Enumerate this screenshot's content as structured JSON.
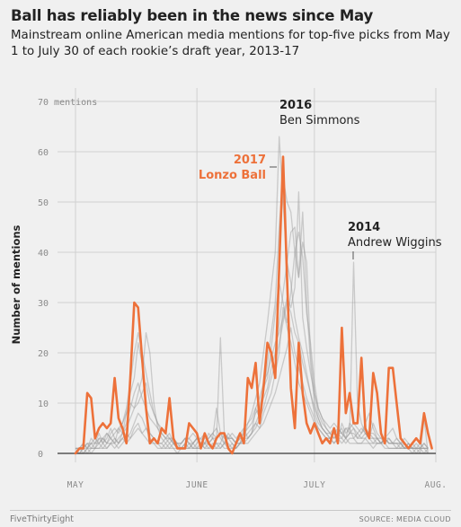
{
  "header": {
    "title": "Ball has reliably been in the news since May",
    "subtitle": "Mainstream online American media mentions for top-five picks from May 1 to July 30 of each rookie’s draft year, 2013-17"
  },
  "footer": {
    "brand": "FiveThirtyEight",
    "source": "SOURCE: MEDIA CLOUD"
  },
  "colors": {
    "highlight": "#ed713a",
    "background_series": "#9a9a9a",
    "grid": "#d0d0d0",
    "background": "#f0f0f0"
  },
  "chart_data": {
    "type": "line",
    "ylabel": "Number of mentions",
    "ylim": [
      0,
      70
    ],
    "xlim": [
      0,
      90
    ],
    "y_ticks": [
      {
        "value": 0,
        "label": "0"
      },
      {
        "value": 10,
        "label": "10"
      },
      {
        "value": 20,
        "label": "20"
      },
      {
        "value": 30,
        "label": "30"
      },
      {
        "value": 40,
        "label": "40"
      },
      {
        "value": 50,
        "label": "50"
      },
      {
        "value": 60,
        "label": "60"
      },
      {
        "value": 70,
        "label": "70 mentions"
      }
    ],
    "x_ticks": [
      {
        "value": 0,
        "label": "MAY"
      },
      {
        "value": 31,
        "label": "JUNE"
      },
      {
        "value": 61,
        "label": "JULY"
      },
      {
        "value": 92,
        "label": "AUG."
      }
    ],
    "annotations": [
      {
        "year": "2016",
        "name": "Ben Simmons",
        "x": 53,
        "y": 63
      },
      {
        "year": "2017",
        "name": "Lonzo Ball",
        "x": 53,
        "y": 59
      },
      {
        "year": "2014",
        "name": "Andrew Wiggins",
        "x": 71,
        "y": 39
      }
    ],
    "highlight_series": {
      "name": "Lonzo Ball",
      "values": [
        0,
        1,
        1,
        12,
        11,
        3,
        5,
        6,
        5,
        6,
        15,
        7,
        5,
        2,
        15,
        30,
        29,
        19,
        9,
        2,
        3,
        2,
        5,
        4,
        11,
        3,
        1,
        1,
        1,
        6,
        5,
        4,
        1,
        4,
        2,
        1,
        3,
        4,
        4,
        1,
        0,
        2,
        4,
        2,
        15,
        13,
        18,
        6,
        13,
        22,
        20,
        15,
        37,
        59,
        35,
        13,
        5,
        22,
        12,
        6,
        4,
        6,
        4,
        2,
        3,
        2,
        5,
        2,
        25,
        8,
        12,
        6,
        6,
        19,
        5,
        3,
        16,
        12,
        4,
        2,
        17,
        17,
        10,
        3,
        2,
        1,
        2,
        3,
        2,
        8,
        4,
        1
      ],
      "pixel_scale_note": ""
    },
    "background_series": [
      {
        "values": [
          1,
          1,
          2,
          1,
          3,
          2,
          4,
          2,
          3,
          5,
          3,
          2,
          4,
          8,
          12,
          15,
          22,
          18,
          9,
          4,
          3,
          2,
          2,
          3,
          4,
          2,
          1,
          2,
          3,
          2,
          1,
          2,
          3,
          4,
          2,
          3,
          9,
          4,
          2,
          3,
          2,
          1,
          2,
          5,
          3,
          4,
          9,
          7,
          12,
          18,
          24,
          30,
          45,
          55,
          50,
          48,
          40,
          35,
          42,
          38,
          20,
          12,
          8,
          6,
          5,
          4,
          3,
          4,
          5,
          3,
          4,
          5,
          3,
          4,
          6,
          8,
          5,
          3,
          2,
          3,
          4,
          5,
          3,
          2,
          3,
          2,
          1,
          2,
          1,
          2,
          1
        ]
      },
      {
        "values": [
          0,
          1,
          1,
          2,
          2,
          1,
          3,
          2,
          4,
          3,
          2,
          5,
          6,
          9,
          14,
          20,
          24,
          20,
          16,
          12,
          8,
          6,
          4,
          3,
          2,
          3,
          2,
          1,
          2,
          3,
          4,
          3,
          2,
          2,
          3,
          4,
          5,
          3,
          2,
          4,
          3,
          2,
          2,
          3,
          6,
          8,
          11,
          14,
          20,
          26,
          33,
          40,
          63,
          50,
          38,
          44,
          45,
          35,
          48,
          30,
          18,
          10,
          7,
          5,
          4,
          3,
          4,
          3,
          6,
          4,
          5,
          3,
          4,
          5,
          4,
          3,
          6,
          4,
          3,
          2,
          3,
          2,
          3,
          2,
          1,
          2,
          1,
          1,
          2,
          1,
          1
        ]
      },
      {
        "values": [
          1,
          0,
          1,
          1,
          2,
          3,
          2,
          3,
          2,
          4,
          5,
          4,
          6,
          8,
          10,
          9,
          12,
          15,
          24,
          20,
          10,
          5,
          3,
          2,
          3,
          2,
          1,
          1,
          2,
          1,
          2,
          3,
          2,
          1,
          2,
          3,
          2,
          2,
          4,
          3,
          3,
          2,
          3,
          4,
          5,
          6,
          8,
          9,
          13,
          15,
          21,
          28,
          34,
          30,
          26,
          32,
          40,
          44,
          39,
          28,
          22,
          14,
          9,
          7,
          5,
          4,
          3,
          4,
          3,
          5,
          4,
          38,
          10,
          6,
          4,
          3,
          2,
          3,
          2,
          3,
          2,
          2,
          1,
          2,
          1,
          2,
          1,
          1,
          1,
          2,
          1
        ]
      },
      {
        "values": [
          0,
          0,
          1,
          0,
          1,
          1,
          2,
          1,
          2,
          2,
          3,
          2,
          3,
          4,
          3,
          5,
          6,
          4,
          5,
          3,
          2,
          2,
          1,
          2,
          1,
          2,
          1,
          1,
          1,
          2,
          1,
          1,
          1,
          2,
          1,
          1,
          1,
          2,
          1,
          1,
          2,
          1,
          2,
          2,
          3,
          4,
          5,
          7,
          9,
          12,
          15,
          18,
          22,
          26,
          30,
          28,
          24,
          22,
          18,
          15,
          12,
          8,
          6,
          5,
          4,
          3,
          4,
          5,
          4,
          3,
          6,
          5,
          4,
          3,
          3,
          4,
          3,
          2,
          2,
          3,
          2,
          2,
          2,
          1,
          2,
          1,
          1,
          1,
          1,
          1,
          0
        ]
      },
      {
        "values": [
          1,
          1,
          1,
          2,
          1,
          2,
          2,
          3,
          2,
          3,
          2,
          3,
          4,
          5,
          7,
          9,
          10,
          12,
          14,
          10,
          8,
          6,
          5,
          4,
          3,
          3,
          2,
          2,
          3,
          2,
          2,
          3,
          3,
          2,
          4,
          3,
          3,
          23,
          4,
          3,
          3,
          2,
          3,
          3,
          4,
          5,
          6,
          8,
          11,
          13,
          17,
          20,
          26,
          32,
          38,
          34,
          27,
          23,
          20,
          16,
          12,
          9,
          7,
          5,
          4,
          4,
          5,
          4,
          4,
          3,
          4,
          4,
          3,
          3,
          4,
          3,
          3,
          3,
          2,
          3,
          2,
          2,
          2,
          2,
          1,
          1,
          1,
          1,
          1,
          1,
          1
        ]
      },
      {
        "values": [
          0,
          1,
          0,
          1,
          1,
          1,
          1,
          2,
          1,
          2,
          2,
          1,
          2,
          3,
          4,
          6,
          8,
          7,
          5,
          4,
          3,
          2,
          2,
          1,
          2,
          1,
          1,
          1,
          1,
          1,
          2,
          1,
          1,
          2,
          2,
          1,
          2,
          1,
          2,
          2,
          1,
          2,
          2,
          3,
          3,
          4,
          6,
          5,
          8,
          10,
          12,
          16,
          20,
          29,
          25,
          22,
          18,
          14,
          12,
          10,
          8,
          6,
          5,
          4,
          3,
          3,
          2,
          3,
          3,
          2,
          3,
          3,
          2,
          2,
          3,
          2,
          2,
          2,
          2,
          2,
          1,
          1,
          1,
          1,
          1,
          1,
          1,
          0,
          1,
          0,
          1
        ]
      },
      {
        "values": [
          1,
          1,
          2,
          1,
          2,
          2,
          3,
          3,
          4,
          3,
          4,
          5,
          4,
          6,
          9,
          12,
          14,
          11,
          9,
          7,
          6,
          5,
          4,
          3,
          3,
          2,
          2,
          2,
          3,
          3,
          2,
          3,
          2,
          3,
          3,
          4,
          3,
          4,
          3,
          3,
          4,
          3,
          4,
          5,
          6,
          7,
          9,
          11,
          14,
          16,
          19,
          22,
          24,
          27,
          31,
          29,
          33,
          52,
          27,
          21,
          16,
          12,
          9,
          7,
          6,
          5,
          6,
          5,
          4,
          5,
          5,
          6,
          5,
          4,
          5,
          4,
          4,
          3,
          3,
          3,
          3,
          2,
          2,
          2,
          2,
          1,
          2,
          1,
          1,
          1,
          1
        ]
      },
      {
        "values": [
          0,
          0,
          0,
          1,
          0,
          1,
          1,
          1,
          1,
          2,
          1,
          2,
          3,
          2,
          3,
          4,
          5,
          4,
          3,
          2,
          2,
          1,
          1,
          1,
          1,
          1,
          0,
          1,
          1,
          1,
          1,
          1,
          2,
          1,
          1,
          2,
          1,
          1,
          2,
          1,
          1,
          1,
          2,
          2,
          2,
          3,
          4,
          5,
          6,
          8,
          10,
          12,
          15,
          18,
          21,
          25,
          20,
          17,
          14,
          11,
          9,
          7,
          5,
          4,
          3,
          3,
          2,
          3,
          2,
          3,
          2,
          2,
          2,
          2,
          2,
          2,
          1,
          2,
          2,
          1,
          1,
          1,
          1,
          1,
          1,
          1,
          0,
          1,
          0,
          7,
          0
        ]
      }
    ]
  }
}
